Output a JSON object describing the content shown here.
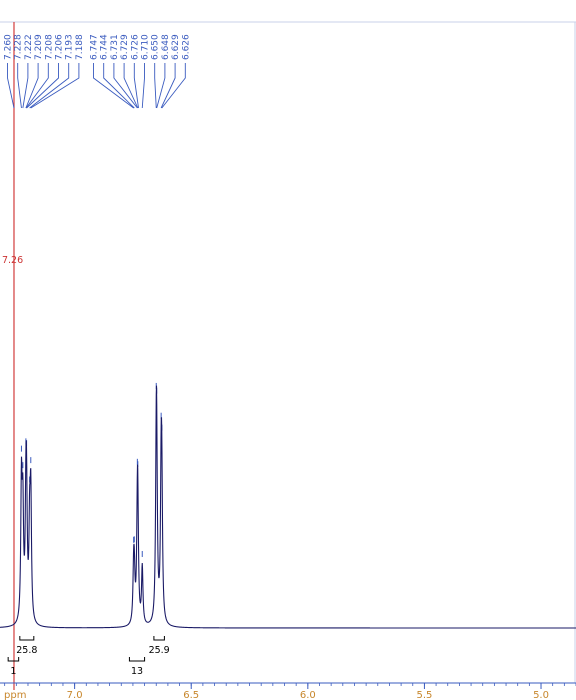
{
  "chart_data": {
    "type": "line",
    "title": "",
    "xlabel": "ppm",
    "ylabel": "",
    "x_axis": {
      "unit": "ppm",
      "reversed": true,
      "range": [
        7.32,
        4.85
      ],
      "ticks": [
        7.0,
        6.5,
        6.0,
        5.5,
        5.0
      ],
      "tick_labels": [
        "7.0",
        "6.5",
        "6.0",
        "5.5",
        "5.0"
      ],
      "minor_tick_step": 0.05
    },
    "grid": false,
    "reference_line": {
      "ppm": 7.26,
      "label": "7.26",
      "color": "#d23c3c"
    },
    "peak_labels": [
      "7.260",
      "7.228",
      "7.222",
      "7.209",
      "7.208",
      "7.206",
      "7.193",
      "7.188",
      "6.747",
      "6.744",
      "6.731",
      "6.729",
      "6.726",
      "6.710",
      "6.650",
      "6.648",
      "6.629",
      "6.626"
    ],
    "peaks": [
      {
        "ppm": 7.228,
        "intensity": 0.8,
        "width": 0.0035
      },
      {
        "ppm": 7.222,
        "intensity": 0.62,
        "width": 0.0035
      },
      {
        "ppm": 7.209,
        "intensity": 0.6,
        "width": 0.0035
      },
      {
        "ppm": 7.206,
        "intensity": 0.58,
        "width": 0.0035
      },
      {
        "ppm": 7.193,
        "intensity": 0.5,
        "width": 0.0035
      },
      {
        "ppm": 7.188,
        "intensity": 0.72,
        "width": 0.0035
      },
      {
        "ppm": 6.747,
        "intensity": 0.28,
        "width": 0.0035
      },
      {
        "ppm": 6.744,
        "intensity": 0.24,
        "width": 0.0035
      },
      {
        "ppm": 6.731,
        "intensity": 0.52,
        "width": 0.0035
      },
      {
        "ppm": 6.729,
        "intensity": 0.48,
        "width": 0.0035
      },
      {
        "ppm": 6.71,
        "intensity": 0.34,
        "width": 0.0035
      },
      {
        "ppm": 6.65,
        "intensity": 0.82,
        "width": 0.0035
      },
      {
        "ppm": 6.648,
        "intensity": 0.68,
        "width": 0.0035
      },
      {
        "ppm": 6.629,
        "intensity": 0.78,
        "width": 0.0035
      },
      {
        "ppm": 6.626,
        "intensity": 0.64,
        "width": 0.0035
      }
    ],
    "integrals": [
      {
        "label": "25.8",
        "from": 7.235,
        "to": 7.175
      },
      {
        "label": "25.9",
        "from": 6.66,
        "to": 6.615
      },
      {
        "label": "13",
        "from": 6.765,
        "to": 6.7
      },
      {
        "label": "1",
        "from": 7.285,
        "to": 7.24
      }
    ],
    "colors": {
      "spectrum": "#1a1a66",
      "peak_labels": "#3a5bbf",
      "axis": "#3a5bbf",
      "tick_labels": "#c8872c",
      "reference": "#d23c3c",
      "frame": "#c9d2ea"
    }
  }
}
